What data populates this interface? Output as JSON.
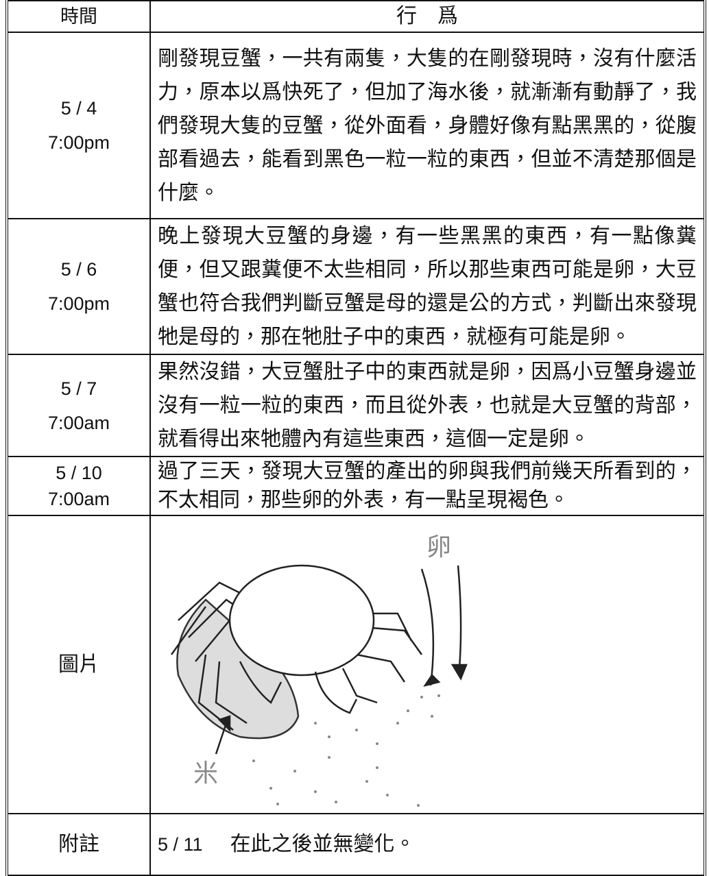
{
  "table": {
    "header": [
      "時間",
      "行　爲"
    ],
    "rows": [
      {
        "date": "5 / 4",
        "time": "7:00pm",
        "text": "剛發現豆蟹，一共有兩隻，大隻的在剛發現時，沒有什麼活力，原本以爲快死了，但加了海水後，就漸漸有動靜了，我們發現大隻的豆蟹，從外面看，身體好像有點黑黑的，從腹部看過去，能看到黑色一粒一粒的東西，但並不清楚那個是什麼。"
      },
      {
        "date": "5 / 6",
        "time": "7:00pm",
        "text": "晚上發現大豆蟹的身邊，有一些黑黑的東西，有一點像糞便，但又跟糞便不太些相同，所以那些東西可能是卵，大豆蟹也符合我們判斷豆蟹是母的還是公的方式，判斷出來發現牠是母的，那在牠肚子中的東西，就極有可能是卵。"
      },
      {
        "date": "5 / 7",
        "time": "7:00am",
        "text": "果然沒錯，大豆蟹肚子中的東西就是卵，因爲小豆蟹身邊並沒有一粒一粒的東西，而且從外表，也就是大豆蟹的背部，就看得出來牠體內有這些東西，這個一定是卵。"
      },
      {
        "date": "5 / 10",
        "time": "7:00am",
        "text": "過了三天，發現大豆蟹的產出的卵與我們前幾天所看到的，不太相同，那些卵的外表，有一點呈現褐色。"
      }
    ],
    "picture": {
      "label": "圖片",
      "egg_label": "卵",
      "rice_label": "米"
    },
    "note": {
      "label": "附註",
      "date": "5 / 11",
      "text": "在此之後並無變化。"
    }
  }
}
